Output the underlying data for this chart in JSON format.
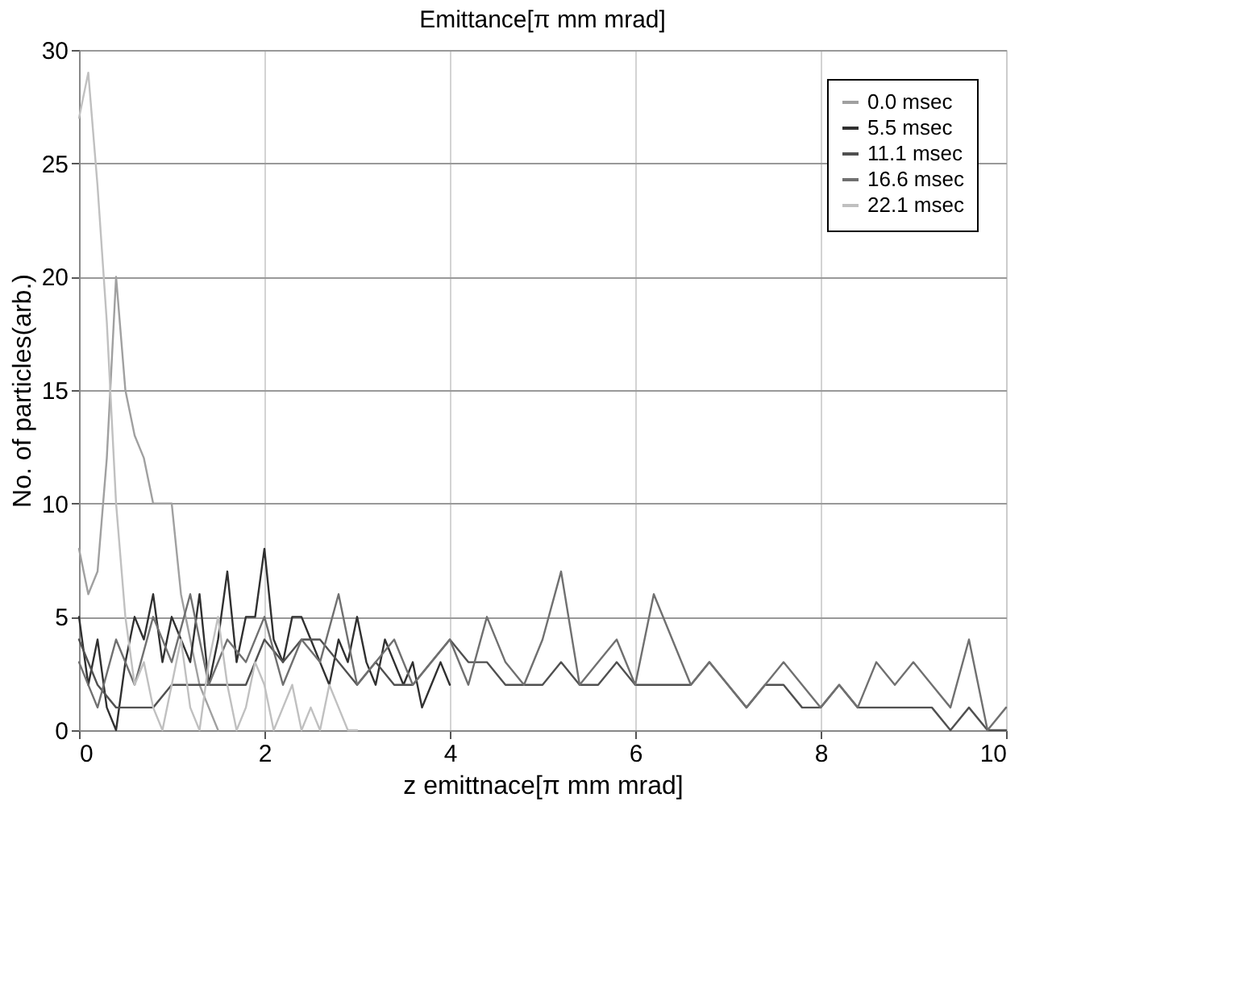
{
  "chart_data": {
    "type": "line",
    "title": "Emittance[π mm mrad]",
    "xlabel": "z emittnace[π mm mrad]",
    "ylabel": "No. of particles(arb.)",
    "xlim": [
      0,
      10
    ],
    "xticks": [
      0,
      2,
      4,
      6,
      8,
      10
    ],
    "ylim": [
      0,
      30
    ],
    "yticks": [
      0,
      5,
      10,
      15,
      20,
      25,
      30
    ],
    "grid": true,
    "legend": "top right",
    "line_style": "solid",
    "marker": "none",
    "series": [
      {
        "name": "0.0 msec",
        "color": "#a0a0a0",
        "x": [
          0,
          0.1,
          0.2,
          0.3,
          0.4,
          0.5,
          0.6,
          0.7,
          0.8,
          0.9,
          1.0,
          1.1,
          1.2,
          1.3,
          1.4,
          1.5
        ],
        "values": [
          8,
          6,
          7,
          12,
          20,
          15,
          13,
          12,
          10,
          10,
          10,
          6,
          4,
          2,
          1,
          0
        ]
      },
      {
        "name": "5.5 msec",
        "color": "#303030",
        "x": [
          0,
          0.1,
          0.2,
          0.3,
          0.4,
          0.5,
          0.6,
          0.7,
          0.8,
          0.9,
          1.0,
          1.1,
          1.2,
          1.3,
          1.4,
          1.5,
          1.6,
          1.7,
          1.8,
          1.9,
          2.0,
          2.1,
          2.2,
          2.3,
          2.4,
          2.5,
          2.6,
          2.7,
          2.8,
          2.9,
          3.0,
          3.1,
          3.2,
          3.3,
          3.4,
          3.5,
          3.6,
          3.7,
          3.8,
          3.9,
          4.0
        ],
        "values": [
          5,
          2,
          4,
          1,
          0,
          3,
          5,
          4,
          6,
          3,
          5,
          4,
          3,
          6,
          2,
          4,
          7,
          3,
          5,
          5,
          8,
          4,
          3,
          5,
          5,
          4,
          3,
          2,
          4,
          3,
          5,
          3,
          2,
          4,
          3,
          2,
          3,
          1,
          2,
          3,
          2
        ]
      },
      {
        "name": "11.1 msec",
        "color": "#505050",
        "x": [
          0,
          0.2,
          0.4,
          0.6,
          0.8,
          1.0,
          1.2,
          1.4,
          1.6,
          1.8,
          2.0,
          2.2,
          2.4,
          2.6,
          2.8,
          3.0,
          3.2,
          3.4,
          3.6,
          3.8,
          4.0,
          4.2,
          4.4,
          4.6,
          4.8,
          5.0,
          5.2,
          5.4,
          5.6,
          5.8,
          6.0,
          6.2,
          6.4,
          6.6,
          6.8,
          7.0,
          7.2,
          7.4,
          7.6,
          7.8,
          8.0,
          8.2,
          8.4,
          8.6,
          8.8,
          9.0,
          9.2,
          9.4,
          9.6,
          9.8,
          10.0
        ],
        "values": [
          4,
          2,
          1,
          1,
          1,
          2,
          2,
          2,
          2,
          2,
          4,
          3,
          4,
          4,
          3,
          2,
          3,
          2,
          2,
          3,
          4,
          3,
          3,
          2,
          2,
          2,
          3,
          2,
          2,
          3,
          2,
          2,
          2,
          2,
          3,
          2,
          1,
          2,
          2,
          1,
          1,
          2,
          1,
          1,
          1,
          1,
          1,
          0,
          1,
          0,
          0
        ]
      },
      {
        "name": "16.6 msec",
        "color": "#707070",
        "x": [
          0,
          0.2,
          0.4,
          0.6,
          0.8,
          1.0,
          1.2,
          1.4,
          1.6,
          1.8,
          2.0,
          2.2,
          2.4,
          2.6,
          2.8,
          3.0,
          3.2,
          3.4,
          3.6,
          3.8,
          4.0,
          4.2,
          4.4,
          4.6,
          4.8,
          5.0,
          5.2,
          5.4,
          5.6,
          5.8,
          6.0,
          6.2,
          6.4,
          6.6,
          6.8,
          7.0,
          7.2,
          7.4,
          7.6,
          7.8,
          8.0,
          8.2,
          8.4,
          8.6,
          8.8,
          9.0,
          9.2,
          9.4,
          9.6,
          9.8,
          10.0
        ],
        "values": [
          3,
          1,
          4,
          2,
          5,
          3,
          6,
          2,
          4,
          3,
          5,
          2,
          4,
          3,
          6,
          2,
          3,
          4,
          2,
          3,
          4,
          2,
          5,
          3,
          2,
          4,
          7,
          2,
          3,
          4,
          2,
          6,
          4,
          2,
          3,
          2,
          1,
          2,
          3,
          2,
          1,
          2,
          1,
          3,
          2,
          3,
          2,
          1,
          4,
          0,
          1
        ]
      },
      {
        "name": "22.1 msec",
        "color": "#c0c0c0",
        "x": [
          0,
          0.1,
          0.2,
          0.3,
          0.4,
          0.5,
          0.6,
          0.7,
          0.8,
          0.9,
          1.0,
          1.1,
          1.2,
          1.3,
          1.4,
          1.5,
          1.6,
          1.7,
          1.8,
          1.9,
          2.0,
          2.1,
          2.2,
          2.3,
          2.4,
          2.5,
          2.6,
          2.7,
          2.8,
          2.9,
          3.0
        ],
        "values": [
          27,
          29,
          24,
          18,
          10,
          5,
          2,
          3,
          1,
          0,
          2,
          4,
          1,
          0,
          3,
          5,
          2,
          0,
          1,
          3,
          2,
          0,
          1,
          2,
          0,
          1,
          0,
          2,
          1,
          0,
          0
        ]
      }
    ]
  }
}
